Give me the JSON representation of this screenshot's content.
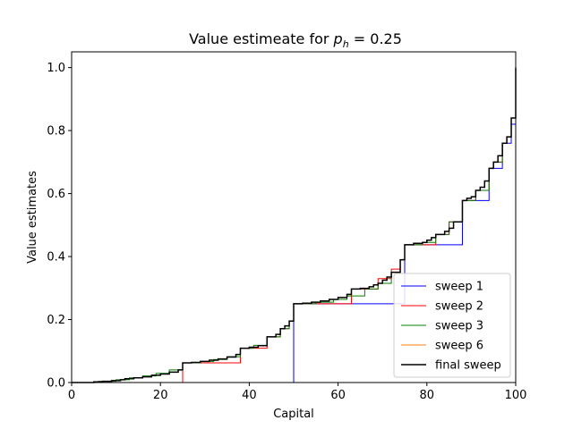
{
  "chart_data": {
    "type": "line",
    "step": true,
    "title_prefix": "Value estimeate for ",
    "title_symbol": "p",
    "title_subscript": "h",
    "title_suffix": " =  0.25",
    "xlabel": "Capital",
    "ylabel": "Value estimates",
    "xlim": [
      0,
      100
    ],
    "ylim": [
      0,
      1.05
    ],
    "xticks": [
      0,
      20,
      40,
      60,
      80,
      100
    ],
    "xtick_labels": [
      "0",
      "20",
      "40",
      "60",
      "80",
      "100"
    ],
    "yticks": [
      0.0,
      0.2,
      0.4,
      0.6,
      0.8,
      1.0
    ],
    "ytick_labels": [
      "0.0",
      "0.2",
      "0.4",
      "0.6",
      "0.8",
      "1.0"
    ],
    "grid": false,
    "legend_position": "lower-right",
    "series": [
      {
        "name": "sweep 1",
        "color": "#0000ff",
        "x": [
          0,
          50,
          75,
          88,
          94,
          97,
          99,
          100
        ],
        "y": [
          0,
          0.25,
          0.4375,
          0.578,
          0.68,
          0.76,
          0.82,
          1.0
        ]
      },
      {
        "name": "sweep 2",
        "color": "#ff0000",
        "x": [
          0,
          25,
          38,
          44,
          47,
          49,
          50,
          63,
          69,
          72,
          74,
          75,
          82,
          85,
          88,
          91,
          94,
          95,
          97,
          98,
          99,
          100
        ],
        "y": [
          0,
          0.0625,
          0.109,
          0.145,
          0.171,
          0.195,
          0.25,
          0.297,
          0.33,
          0.36,
          0.39,
          0.4375,
          0.47,
          0.51,
          0.578,
          0.61,
          0.68,
          0.7,
          0.76,
          0.78,
          0.84,
          1.0
        ]
      },
      {
        "name": "sweep 3",
        "color": "#008000",
        "x": [
          0,
          6,
          10,
          13,
          16,
          19,
          22,
          25,
          29,
          32,
          35,
          38,
          41,
          44,
          47,
          49,
          50,
          55,
          59,
          62,
          66,
          69,
          72,
          74,
          75,
          79,
          82,
          85,
          88,
          91,
          94,
          95,
          97,
          98,
          99,
          100
        ],
        "y": [
          0,
          0.004,
          0.009,
          0.015,
          0.021,
          0.029,
          0.04,
          0.0625,
          0.067,
          0.073,
          0.082,
          0.109,
          0.118,
          0.145,
          0.171,
          0.195,
          0.25,
          0.255,
          0.264,
          0.275,
          0.297,
          0.315,
          0.35,
          0.39,
          0.4375,
          0.445,
          0.47,
          0.51,
          0.578,
          0.61,
          0.68,
          0.7,
          0.76,
          0.78,
          0.84,
          1.0
        ]
      },
      {
        "name": "sweep 6",
        "color": "#ff7f0e",
        "x": [
          0,
          5,
          7,
          9,
          11,
          12,
          14,
          16,
          18,
          20,
          22,
          24,
          25,
          27,
          29,
          31,
          33,
          35,
          37,
          38,
          40,
          42,
          44,
          46,
          47,
          48,
          49,
          50,
          52,
          54,
          56,
          58,
          60,
          62,
          63,
          65,
          67,
          68,
          69,
          70,
          71,
          72,
          74,
          75,
          77,
          79,
          80,
          81,
          82,
          84,
          85,
          86,
          88,
          89,
          90,
          91,
          92,
          93,
          94,
          95,
          96,
          97,
          98,
          99,
          100
        ],
        "y": [
          0,
          0.002,
          0.004,
          0.006,
          0.009,
          0.012,
          0.015,
          0.018,
          0.023,
          0.027,
          0.033,
          0.04,
          0.0625,
          0.064,
          0.067,
          0.071,
          0.075,
          0.081,
          0.089,
          0.109,
          0.112,
          0.117,
          0.145,
          0.153,
          0.171,
          0.18,
          0.195,
          0.25,
          0.252,
          0.255,
          0.259,
          0.264,
          0.27,
          0.28,
          0.297,
          0.299,
          0.304,
          0.31,
          0.315,
          0.325,
          0.335,
          0.35,
          0.39,
          0.4375,
          0.442,
          0.445,
          0.452,
          0.46,
          0.47,
          0.48,
          0.49,
          0.51,
          0.578,
          0.585,
          0.59,
          0.61,
          0.62,
          0.64,
          0.68,
          0.7,
          0.72,
          0.76,
          0.78,
          0.84,
          1.0
        ]
      },
      {
        "name": "final sweep",
        "color": "#000000",
        "x": [
          0,
          5,
          7,
          9,
          11,
          12,
          14,
          16,
          18,
          20,
          22,
          24,
          25,
          27,
          29,
          31,
          33,
          35,
          37,
          38,
          40,
          42,
          44,
          46,
          47,
          48,
          49,
          50,
          52,
          54,
          56,
          58,
          60,
          62,
          63,
          65,
          67,
          68,
          69,
          70,
          71,
          72,
          74,
          75,
          77,
          79,
          80,
          81,
          82,
          84,
          85,
          86,
          88,
          89,
          90,
          91,
          92,
          93,
          94,
          95,
          96,
          97,
          98,
          99,
          100
        ],
        "y": [
          0,
          0.002,
          0.004,
          0.006,
          0.009,
          0.012,
          0.015,
          0.018,
          0.023,
          0.027,
          0.033,
          0.04,
          0.0625,
          0.064,
          0.067,
          0.071,
          0.075,
          0.081,
          0.089,
          0.109,
          0.112,
          0.117,
          0.145,
          0.153,
          0.171,
          0.18,
          0.195,
          0.25,
          0.252,
          0.255,
          0.259,
          0.264,
          0.27,
          0.28,
          0.297,
          0.299,
          0.304,
          0.31,
          0.315,
          0.325,
          0.335,
          0.35,
          0.39,
          0.4375,
          0.442,
          0.445,
          0.452,
          0.46,
          0.47,
          0.48,
          0.49,
          0.51,
          0.578,
          0.585,
          0.59,
          0.61,
          0.62,
          0.64,
          0.68,
          0.7,
          0.72,
          0.76,
          0.78,
          0.84,
          1.0
        ]
      }
    ]
  }
}
